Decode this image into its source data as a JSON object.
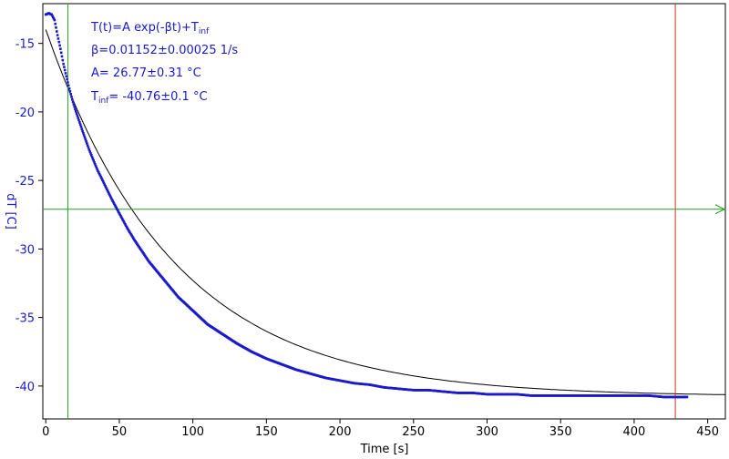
{
  "chart_data": {
    "type": "scatter",
    "xlabel": "Time [s]",
    "ylabel": "dT [C]",
    "xlim": [
      -2,
      462
    ],
    "ylim": [
      -42.4,
      -12.1
    ],
    "x_ticks": [
      0,
      50,
      100,
      150,
      200,
      250,
      300,
      350,
      400,
      450
    ],
    "y_ticks": [
      -15,
      -20,
      -25,
      -30,
      -35,
      -40
    ],
    "grid": false,
    "fit": {
      "A": 26.77,
      "beta": 0.01152,
      "T_inf": -40.76,
      "x_range": [
        0,
        462
      ]
    },
    "series": [
      {
        "kind": "measured",
        "color": "#1a1acc",
        "x": [
          0,
          2,
          4,
          6,
          8,
          10,
          12,
          14,
          16,
          18,
          20,
          25,
          30,
          35,
          40,
          45,
          50,
          55,
          60,
          70,
          80,
          90,
          100,
          110,
          120,
          130,
          140,
          150,
          160,
          170,
          180,
          190,
          200,
          210,
          220,
          230,
          240,
          250,
          260,
          270,
          280,
          290,
          300,
          310,
          320,
          330,
          340,
          350,
          360,
          370,
          380,
          390,
          400,
          410,
          420,
          430,
          436
        ],
        "y": [
          -12.9,
          -12.8,
          -12.9,
          -13.3,
          -14.4,
          -15.4,
          -16.5,
          -17.4,
          -18.3,
          -19.1,
          -19.8,
          -21.4,
          -22.9,
          -24.2,
          -25.3,
          -26.4,
          -27.4,
          -28.4,
          -29.3,
          -30.9,
          -32.2,
          -33.5,
          -34.5,
          -35.5,
          -36.2,
          -36.9,
          -37.5,
          -38.0,
          -38.4,
          -38.8,
          -39.1,
          -39.4,
          -39.6,
          -39.8,
          -39.9,
          -40.1,
          -40.2,
          -40.3,
          -40.3,
          -40.4,
          -40.5,
          -40.5,
          -40.6,
          -40.6,
          -40.6,
          -40.7,
          -40.7,
          -40.7,
          -40.7,
          -40.7,
          -40.7,
          -40.7,
          -40.7,
          -40.7,
          -40.8,
          -40.8,
          -40.8
        ]
      }
    ],
    "annotations": {
      "formula": "T(t)=A exp(-βt)+T",
      "formula_sub": "inf",
      "beta_text": "β=0.01152±0.00025 1/s",
      "a_text": "A= 26.77±0.31 °C",
      "tinf_main": "T",
      "tinf_sub": "inf",
      "tinf_rest": "= -40.76±0.1 °C"
    },
    "markers": {
      "vline_green_x": 15,
      "vline_red_x": 428,
      "hline_green_y": -27.1
    }
  },
  "colors": {
    "data": "#1a1acc",
    "fit": "#000000",
    "green": "#21a321",
    "red": "#c0392b",
    "ytick": "#1a1acc"
  }
}
